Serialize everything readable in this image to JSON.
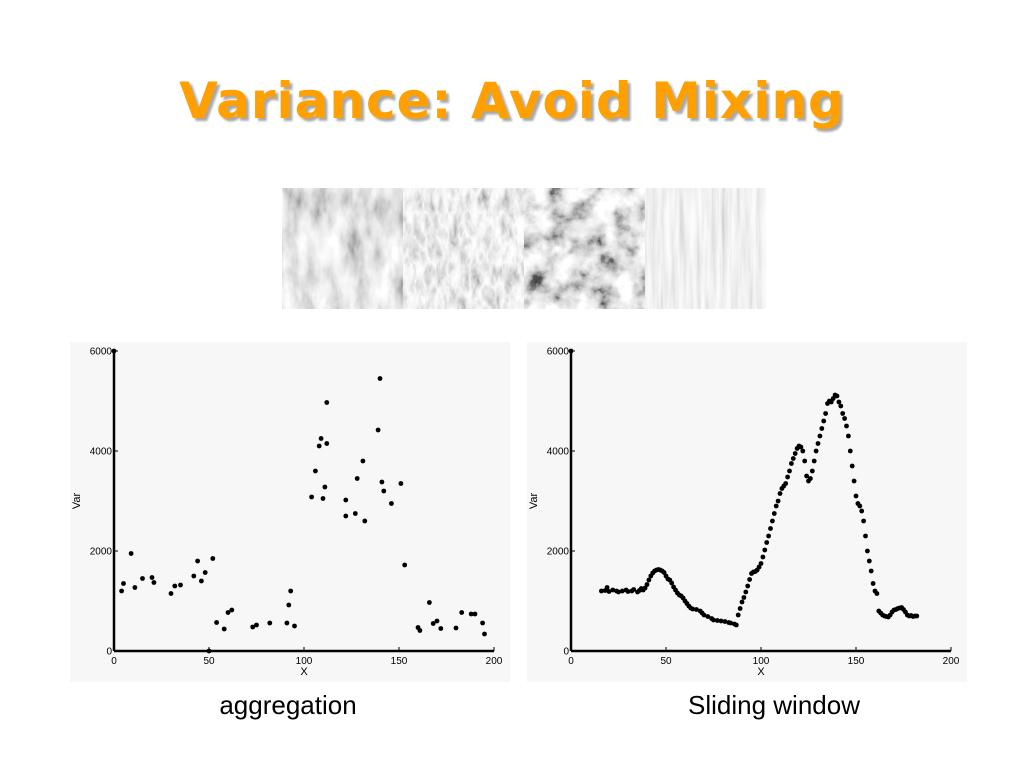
{
  "slide": {
    "title": "Variance: Avoid Mixing",
    "texture_panels": [
      {
        "name": "bark-texture",
        "tone": "#8e8e8e"
      },
      {
        "name": "grass-texture",
        "tone": "#7a7a7a"
      },
      {
        "name": "foliage-texture",
        "tone": "#5a5a5a"
      },
      {
        "name": "wood-texture",
        "tone": "#b4b4b4"
      }
    ],
    "captions": {
      "left": "aggregation",
      "right": "Sliding window"
    }
  },
  "chart_data": [
    {
      "type": "scatter",
      "title": "",
      "xlabel": "X",
      "ylabel": "Var",
      "xlim": [
        0,
        200
      ],
      "ylim": [
        0,
        6000
      ],
      "xticks": [
        0,
        50,
        100,
        150,
        200
      ],
      "yticks": [
        0,
        2000,
        4000,
        6000
      ],
      "grid": false,
      "marker_color": "#000000",
      "points": [
        [
          0,
          6000
        ],
        [
          4,
          1200
        ],
        [
          5,
          1350
        ],
        [
          9,
          1950
        ],
        [
          11,
          1270
        ],
        [
          15,
          1450
        ],
        [
          20,
          1470
        ],
        [
          21,
          1370
        ],
        [
          30,
          1150
        ],
        [
          32,
          1300
        ],
        [
          35,
          1320
        ],
        [
          42,
          1500
        ],
        [
          44,
          1800
        ],
        [
          46,
          1400
        ],
        [
          48,
          1570
        ],
        [
          50,
          0
        ],
        [
          52,
          1850
        ],
        [
          54,
          570
        ],
        [
          58,
          440
        ],
        [
          60,
          770
        ],
        [
          62,
          820
        ],
        [
          73,
          480
        ],
        [
          75,
          520
        ],
        [
          82,
          560
        ],
        [
          91,
          560
        ],
        [
          92,
          920
        ],
        [
          93,
          1200
        ],
        [
          95,
          500
        ],
        [
          104,
          3080
        ],
        [
          106,
          3600
        ],
        [
          108,
          4100
        ],
        [
          109,
          4250
        ],
        [
          110,
          3050
        ],
        [
          111,
          3280
        ],
        [
          112,
          4150
        ],
        [
          112,
          4970
        ],
        [
          122,
          3020
        ],
        [
          122,
          2700
        ],
        [
          127,
          2750
        ],
        [
          128,
          3450
        ],
        [
          131,
          3800
        ],
        [
          132,
          2600
        ],
        [
          139,
          4420
        ],
        [
          140,
          5450
        ],
        [
          141,
          3380
        ],
        [
          142,
          3200
        ],
        [
          146,
          2950
        ],
        [
          151,
          3350
        ],
        [
          153,
          1720
        ],
        [
          160,
          470
        ],
        [
          161,
          410
        ],
        [
          166,
          970
        ],
        [
          168,
          550
        ],
        [
          170,
          600
        ],
        [
          172,
          450
        ],
        [
          180,
          460
        ],
        [
          183,
          770
        ],
        [
          188,
          740
        ],
        [
          190,
          740
        ],
        [
          194,
          560
        ],
        [
          195,
          340
        ]
      ]
    },
    {
      "type": "scatter",
      "title": "",
      "xlabel": "X",
      "ylabel": "Var",
      "xlim": [
        0,
        200
      ],
      "ylim": [
        0,
        6000
      ],
      "xticks": [
        0,
        50,
        100,
        150,
        200
      ],
      "yticks": [
        0,
        2000,
        4000,
        6000
      ],
      "grid": false,
      "marker_color": "#000000",
      "points": [
        [
          0,
          6000
        ],
        [
          16,
          1200
        ],
        [
          18,
          1210
        ],
        [
          19,
          1270
        ],
        [
          20,
          1190
        ],
        [
          22,
          1220
        ],
        [
          24,
          1200
        ],
        [
          25,
          1180
        ],
        [
          27,
          1200
        ],
        [
          29,
          1220
        ],
        [
          30,
          1190
        ],
        [
          32,
          1200
        ],
        [
          33,
          1230
        ],
        [
          35,
          1180
        ],
        [
          36,
          1210
        ],
        [
          37,
          1250
        ],
        [
          38,
          1220
        ],
        [
          39,
          1260
        ],
        [
          40,
          1330
        ],
        [
          41,
          1420
        ],
        [
          42,
          1500
        ],
        [
          43,
          1560
        ],
        [
          44,
          1600
        ],
        [
          45,
          1620
        ],
        [
          46,
          1630
        ],
        [
          47,
          1620
        ],
        [
          48,
          1600
        ],
        [
          49,
          1570
        ],
        [
          50,
          1500
        ],
        [
          51,
          1440
        ],
        [
          52,
          1420
        ],
        [
          53,
          1360
        ],
        [
          54,
          1280
        ],
        [
          55,
          1220
        ],
        [
          56,
          1160
        ],
        [
          57,
          1120
        ],
        [
          58,
          1100
        ],
        [
          59,
          1060
        ],
        [
          60,
          1000
        ],
        [
          61,
          950
        ],
        [
          62,
          900
        ],
        [
          63,
          860
        ],
        [
          64,
          840
        ],
        [
          66,
          830
        ],
        [
          68,
          800
        ],
        [
          69,
          760
        ],
        [
          70,
          720
        ],
        [
          72,
          690
        ],
        [
          74,
          650
        ],
        [
          75,
          620
        ],
        [
          77,
          610
        ],
        [
          79,
          600
        ],
        [
          81,
          590
        ],
        [
          83,
          570
        ],
        [
          84,
          560
        ],
        [
          86,
          540
        ],
        [
          87,
          520
        ],
        [
          88,
          720
        ],
        [
          89,
          850
        ],
        [
          90,
          980
        ],
        [
          91,
          1070
        ],
        [
          92,
          1180
        ],
        [
          93,
          1300
        ],
        [
          94,
          1430
        ],
        [
          95,
          1550
        ],
        [
          96,
          1580
        ],
        [
          97,
          1590
        ],
        [
          98,
          1620
        ],
        [
          99,
          1680
        ],
        [
          100,
          1750
        ],
        [
          101,
          1880
        ],
        [
          102,
          2020
        ],
        [
          103,
          2170
        ],
        [
          104,
          2300
        ],
        [
          105,
          2450
        ],
        [
          106,
          2600
        ],
        [
          107,
          2750
        ],
        [
          108,
          2900
        ],
        [
          109,
          3000
        ],
        [
          110,
          3150
        ],
        [
          111,
          3250
        ],
        [
          112,
          3300
        ],
        [
          113,
          3350
        ],
        [
          114,
          3480
        ],
        [
          115,
          3600
        ],
        [
          116,
          3750
        ],
        [
          117,
          3850
        ],
        [
          118,
          3950
        ],
        [
          119,
          4050
        ],
        [
          120,
          4100
        ],
        [
          121,
          4080
        ],
        [
          122,
          4000
        ],
        [
          123,
          3800
        ],
        [
          124,
          3500
        ],
        [
          125,
          3400
        ],
        [
          126,
          3450
        ],
        [
          127,
          3600
        ],
        [
          128,
          3800
        ],
        [
          129,
          4000
        ],
        [
          130,
          4150
        ],
        [
          131,
          4300
        ],
        [
          132,
          4450
        ],
        [
          133,
          4600
        ],
        [
          134,
          4750
        ],
        [
          135,
          4950
        ],
        [
          136,
          5000
        ],
        [
          137,
          4980
        ],
        [
          138,
          5050
        ],
        [
          139,
          5120
        ],
        [
          140,
          5100
        ],
        [
          141,
          4980
        ],
        [
          142,
          4900
        ],
        [
          143,
          4750
        ],
        [
          144,
          4650
        ],
        [
          145,
          4500
        ],
        [
          146,
          4300
        ],
        [
          147,
          4000
        ],
        [
          148,
          3700
        ],
        [
          149,
          3400
        ],
        [
          150,
          3100
        ],
        [
          151,
          2950
        ],
        [
          152,
          2900
        ],
        [
          153,
          2800
        ],
        [
          154,
          2600
        ],
        [
          155,
          2300
        ],
        [
          156,
          2000
        ],
        [
          157,
          1800
        ],
        [
          158,
          1600
        ],
        [
          159,
          1350
        ],
        [
          160,
          1200
        ],
        [
          161,
          1150
        ],
        [
          162,
          800
        ],
        [
          163,
          760
        ],
        [
          164,
          720
        ],
        [
          165,
          700
        ],
        [
          166,
          690
        ],
        [
          167,
          680
        ],
        [
          168,
          720
        ],
        [
          169,
          780
        ],
        [
          170,
          820
        ],
        [
          171,
          830
        ],
        [
          172,
          850
        ],
        [
          173,
          860
        ],
        [
          174,
          870
        ],
        [
          175,
          830
        ],
        [
          176,
          780
        ],
        [
          177,
          720
        ],
        [
          178,
          700
        ],
        [
          179,
          710
        ],
        [
          180,
          690
        ],
        [
          181,
          700
        ],
        [
          182,
          700
        ]
      ]
    }
  ]
}
